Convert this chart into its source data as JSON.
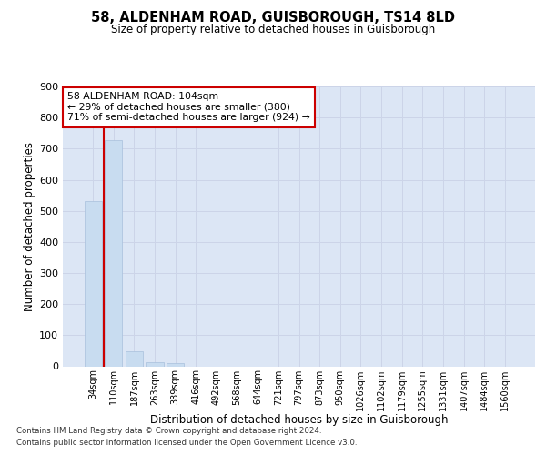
{
  "title": "58, ALDENHAM ROAD, GUISBOROUGH, TS14 8LD",
  "subtitle": "Size of property relative to detached houses in Guisborough",
  "xlabel": "Distribution of detached houses by size in Guisborough",
  "ylabel": "Number of detached properties",
  "categories": [
    "34sqm",
    "110sqm",
    "187sqm",
    "263sqm",
    "339sqm",
    "416sqm",
    "492sqm",
    "568sqm",
    "644sqm",
    "721sqm",
    "797sqm",
    "873sqm",
    "950sqm",
    "1026sqm",
    "1102sqm",
    "1179sqm",
    "1255sqm",
    "1331sqm",
    "1407sqm",
    "1484sqm",
    "1560sqm"
  ],
  "values": [
    530,
    728,
    48,
    12,
    10,
    0,
    0,
    0,
    0,
    0,
    0,
    0,
    0,
    0,
    0,
    0,
    0,
    0,
    0,
    0,
    0
  ],
  "bar_color": "#c8dcf0",
  "bar_edge_color": "#a8c0dc",
  "vline_color": "#cc0000",
  "vline_x": 0.5,
  "annotation_text": "58 ALDENHAM ROAD: 104sqm\n← 29% of detached houses are smaller (380)\n71% of semi-detached houses are larger (924) →",
  "annotation_box_color": "#ffffff",
  "annotation_box_edge_color": "#cc0000",
  "grid_color": "#ccd4e8",
  "background_color": "#dce6f5",
  "ylim": [
    0,
    900
  ],
  "yticks": [
    0,
    100,
    200,
    300,
    400,
    500,
    600,
    700,
    800,
    900
  ],
  "footnote1": "Contains HM Land Registry data © Crown copyright and database right 2024.",
  "footnote2": "Contains public sector information licensed under the Open Government Licence v3.0."
}
